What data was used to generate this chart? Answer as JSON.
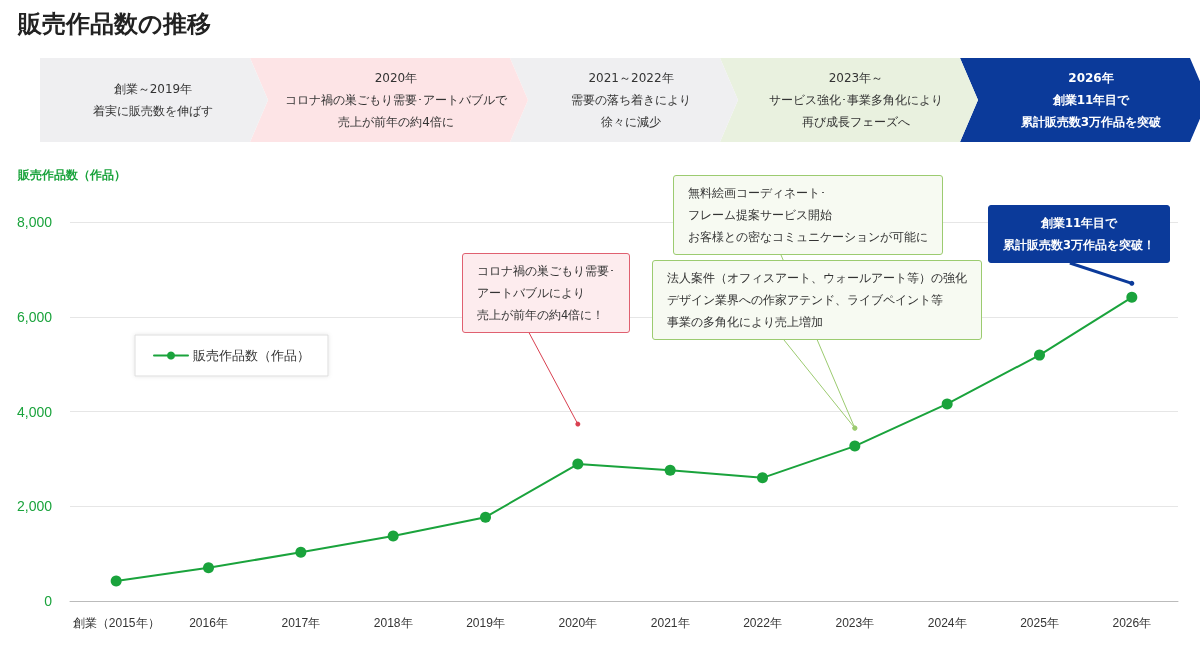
{
  "chart_data": {
    "type": "line",
    "title": "販売作品数の推移",
    "ylabel": "販売作品数（作品）",
    "categories": [
      "創業（2015年）",
      "2016年",
      "2017年",
      "2018年",
      "2019年",
      "2020年",
      "2021年",
      "2022年",
      "2023年",
      "2024年",
      "2025年",
      "2026年"
    ],
    "series": [
      {
        "name": "販売作品数（作品）",
        "color": "#1aa33c",
        "values": [
          420,
          700,
          1030,
          1370,
          1770,
          2890,
          2760,
          2600,
          3270,
          4160,
          5190,
          6410
        ]
      }
    ],
    "ylim": [
      0,
      8000
    ],
    "yticks": [
      {
        "value": 0,
        "label": "0"
      },
      {
        "value": 2000,
        "label": "2,000"
      },
      {
        "value": 4000,
        "label": "4,000"
      },
      {
        "value": 6000,
        "label": "6,000"
      },
      {
        "value": 8000,
        "label": "8,000"
      }
    ],
    "grid": "y",
    "legend": "left",
    "marker": "circle",
    "line_style": "solid",
    "annotations": [
      "創業～2019年",
      "着実に販売数を伸ばす",
      "2020年",
      "コロナ禍の巣ごもり需要･アートバブルで",
      "売上が前年の約4倍に",
      "2021～2022年",
      "需要の落ち着きにより",
      "徐々に減少",
      "2023年～",
      "サービス強化･事業多角化により",
      "再び成長フェーズへ",
      "2026年",
      "創業11年目で",
      "累計販売数3万作品を突破",
      "コロナ禍の巣ごもり需要･",
      "アートバブルにより",
      "売上が前年の約4倍に！",
      "無料絵画コーディネート･",
      "フレーム提案サービス開始",
      "お客様との密なコミュニケーションが可能に",
      "法人案件（オフィスアート、ウォールアート等）の強化",
      "デザイン業界への作家アテンド、ライブペイント等",
      "事業の多角化により売上増加",
      "創業11年目で",
      "累計販売数3万作品を突破！"
    ]
  }
}
